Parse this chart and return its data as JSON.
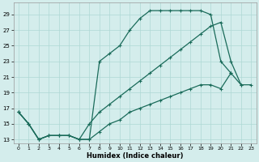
{
  "xlabel": "Humidex (Indice chaleur)",
  "xlim": [
    -0.5,
    23.5
  ],
  "ylim": [
    12.5,
    30.5
  ],
  "xticks": [
    0,
    1,
    2,
    3,
    4,
    5,
    6,
    7,
    8,
    9,
    10,
    11,
    12,
    13,
    14,
    15,
    16,
    17,
    18,
    19,
    20,
    21,
    22,
    23
  ],
  "yticks": [
    13,
    15,
    17,
    19,
    21,
    23,
    25,
    27,
    29
  ],
  "bg_color": "#d4edec",
  "line_color": "#1a6b5a",
  "grid_color": "#aed8d4",
  "line1_x": [
    0,
    1,
    2,
    3,
    4,
    5,
    6,
    7,
    8,
    9,
    10,
    11,
    12,
    13,
    14,
    15,
    16,
    17,
    18,
    19,
    20,
    21
  ],
  "line1_y": [
    16.5,
    15.0,
    13.0,
    13.5,
    13.5,
    13.5,
    13.0,
    13.0,
    23.0,
    24.0,
    25.0,
    27.0,
    28.5,
    29.5,
    29.5,
    29.5,
    29.5,
    29.5,
    29.5,
    29.0,
    23.0,
    21.5
  ],
  "line2_x": [
    0,
    1,
    2,
    3,
    4,
    5,
    6,
    7,
    8,
    9,
    10,
    11,
    12,
    13,
    14,
    15,
    16,
    17,
    18,
    19,
    20,
    21,
    22
  ],
  "line2_y": [
    16.5,
    15.0,
    13.0,
    13.5,
    13.5,
    13.5,
    13.0,
    15.0,
    16.5,
    17.5,
    18.5,
    19.5,
    20.5,
    21.5,
    22.5,
    23.5,
    24.5,
    25.5,
    26.5,
    27.5,
    28.0,
    23.0,
    20.0
  ],
  "line3_x": [
    0,
    1,
    2,
    3,
    4,
    5,
    6,
    7,
    8,
    9,
    10,
    11,
    12,
    13,
    14,
    15,
    16,
    17,
    18,
    19,
    20,
    21,
    22,
    23
  ],
  "line3_y": [
    16.5,
    15.0,
    13.0,
    13.5,
    13.5,
    13.5,
    13.0,
    13.0,
    14.0,
    15.0,
    15.5,
    16.5,
    17.0,
    17.5,
    18.0,
    18.5,
    19.0,
    19.5,
    20.0,
    20.0,
    19.5,
    21.5,
    20.0,
    20.0
  ]
}
